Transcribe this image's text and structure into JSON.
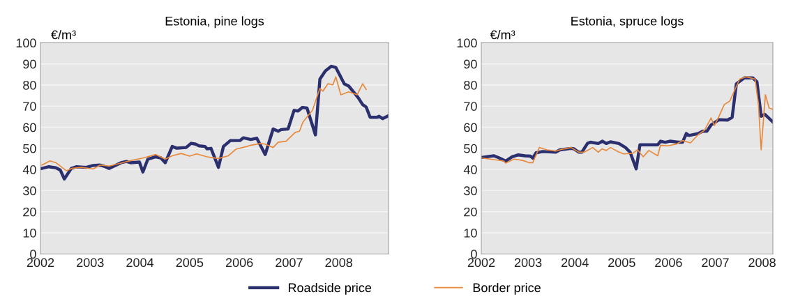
{
  "chart_data": [
    {
      "type": "line",
      "title": "Estonia, pine logs",
      "ylabel": "€/m³",
      "ylim": [
        0,
        100
      ],
      "yticks": [
        0,
        10,
        20,
        30,
        40,
        50,
        60,
        70,
        80,
        90,
        100
      ],
      "xlim": [
        2002,
        2009
      ],
      "xticks": [
        2002,
        2003,
        2004,
        2005,
        2006,
        2007,
        2008
      ],
      "grid": "y",
      "legend": "bottom",
      "marker": "none",
      "series": [
        {
          "name": "Roadside price",
          "color": "#2b2f6e",
          "line_style": "solid",
          "x": [
            2002.03,
            2002.17,
            2002.31,
            2002.4,
            2002.48,
            2002.62,
            2002.73,
            2002.92,
            2003.06,
            2003.2,
            2003.27,
            2003.38,
            2003.48,
            2003.62,
            2003.73,
            2003.81,
            2003.99,
            2004.06,
            2004.16,
            2004.32,
            2004.42,
            2004.51,
            2004.65,
            2004.74,
            2004.93,
            2005.03,
            2005.12,
            2005.19,
            2005.31,
            2005.35,
            2005.43,
            2005.58,
            2005.68,
            2005.82,
            2006.01,
            2006.08,
            2006.23,
            2006.35,
            2006.52,
            2006.68,
            2006.78,
            2006.84,
            2006.98,
            2007.1,
            2007.18,
            2007.27,
            2007.36,
            2007.53,
            2007.62,
            2007.73,
            2007.85,
            2007.94,
            2008.11,
            2008.2,
            2008.39,
            2008.48,
            2008.55,
            2008.63,
            2008.77,
            2008.81,
            2008.88,
            2009
          ],
          "values": [
            40.5,
            41.3,
            40.8,
            39.7,
            35.5,
            40.5,
            41.3,
            41,
            41.9,
            42.1,
            41.6,
            40.5,
            41.6,
            43.2,
            43.8,
            43.2,
            43.5,
            38.8,
            44.9,
            46,
            45.5,
            43.2,
            50.9,
            50.1,
            50.4,
            52.4,
            52,
            51.2,
            50.9,
            49.8,
            50,
            41,
            50.9,
            53.7,
            53.7,
            55,
            54.2,
            54.8,
            47.1,
            59.2,
            58.1,
            58.9,
            59.2,
            68,
            67.7,
            69.4,
            69.1,
            56.4,
            82.8,
            86.7,
            88.9,
            88.3,
            80.6,
            79.5,
            74,
            70.7,
            69.6,
            64.7,
            64.7,
            65.2,
            64.1,
            65.5
          ]
        },
        {
          "name": "Border price",
          "color": "#e8883a",
          "line_style": "solid",
          "x": [
            2002.03,
            2002.19,
            2002.31,
            2002.52,
            2002.63,
            2002.83,
            2003.06,
            2003.2,
            2003.38,
            2003.62,
            2003.83,
            2004.06,
            2004.32,
            2004.51,
            2004.65,
            2004.83,
            2005.0,
            2005.14,
            2005.35,
            2005.58,
            2005.78,
            2005.93,
            2006.15,
            2006.23,
            2006.43,
            2006.52,
            2006.68,
            2006.78,
            2006.94,
            2007.12,
            2007.21,
            2007.28,
            2007.47,
            2007.62,
            2007.68,
            2007.78,
            2007.88,
            2007.94,
            2008.04,
            2008.2,
            2008.37,
            2008.48,
            2008.55
          ],
          "values": [
            42.1,
            44.1,
            43.2,
            39.4,
            40.5,
            41,
            40.2,
            42.1,
            41.6,
            43,
            44.3,
            45.4,
            47.1,
            44.9,
            46.5,
            47.6,
            46.3,
            47.4,
            46,
            45.2,
            46.5,
            49.6,
            50.9,
            51.5,
            52.3,
            52,
            50.4,
            52.9,
            53.4,
            57.5,
            58.1,
            62.5,
            68,
            78.4,
            77.1,
            80.6,
            80.1,
            83.9,
            75.4,
            76.8,
            75.4,
            80.6,
            77.9
          ]
        }
      ]
    },
    {
      "type": "line",
      "title": "Estonia, spruce logs",
      "ylabel": "€/m³",
      "ylim": [
        0,
        100
      ],
      "yticks": [
        0,
        10,
        20,
        30,
        40,
        50,
        60,
        70,
        80,
        90,
        100
      ],
      "xlim": [
        2002,
        2008.23
      ],
      "xticks": [
        2002,
        2003,
        2004,
        2005,
        2006,
        2007,
        2008
      ],
      "grid": "y",
      "marker": "none",
      "series": [
        {
          "name": "Roadside price",
          "color": "#2b2f6e",
          "line_style": "solid",
          "x": [
            2002.0,
            2002.27,
            2002.38,
            2002.52,
            2002.66,
            2002.7,
            2002.79,
            2002.93,
            2003.05,
            2003.1,
            2003.17,
            2003.31,
            2003.59,
            2003.68,
            2003.92,
            2003.98,
            2004.08,
            2004.15,
            2004.27,
            2004.33,
            2004.5,
            2004.59,
            2004.67,
            2004.76,
            2004.94,
            2005.08,
            2005.18,
            2005.31,
            2005.39,
            2005.77,
            2005.83,
            2005.93,
            2006.03,
            2006.21,
            2006.3,
            2006.38,
            2006.44,
            2006.63,
            2006.73,
            2006.82,
            2006.91,
            2007.08,
            2007.26,
            2007.36,
            2007.45,
            2007.62,
            2007.8,
            2007.89,
            2007.98,
            2008.06,
            2008.23
          ],
          "values": [
            45.7,
            46.5,
            45.5,
            44,
            46,
            46.3,
            46.9,
            46.5,
            46.3,
            45.4,
            47.9,
            48.5,
            48.2,
            49.3,
            50,
            49.8,
            48.2,
            48.2,
            52.4,
            52.9,
            52.3,
            53.4,
            52.3,
            53.1,
            52.3,
            50.4,
            48.2,
            40.3,
            51.7,
            51.7,
            53.4,
            52.9,
            53.4,
            52.9,
            52.9,
            57,
            56.1,
            57,
            58.1,
            58.1,
            61.1,
            63.6,
            63.4,
            64.7,
            80.6,
            83.4,
            83.4,
            81.5,
            65.2,
            66.1,
            62.5
          ]
        },
        {
          "name": "Border price",
          "color": "#e8883a",
          "line_style": "solid",
          "x": [
            2002.0,
            2002.48,
            2002.52,
            2002.7,
            2002.88,
            2003.03,
            2003.1,
            2003.24,
            2003.4,
            2003.59,
            2003.73,
            2003.92,
            2004.08,
            2004.2,
            2004.38,
            2004.5,
            2004.58,
            2004.67,
            2004.76,
            2004.94,
            2005.04,
            2005.23,
            2005.34,
            2005.46,
            2005.58,
            2005.77,
            2005.83,
            2005.98,
            2006.17,
            2006.3,
            2006.47,
            2006.63,
            2006.77,
            2006.91,
            2006.98,
            2007.08,
            2007.19,
            2007.31,
            2007.52,
            2007.66,
            2007.85,
            2007.92,
            2007.98,
            2008.07,
            2008.15,
            2008.23
          ],
          "values": [
            45.5,
            44,
            43,
            44.9,
            44.3,
            43.2,
            43.2,
            50.4,
            49.3,
            48.7,
            49.6,
            50.4,
            48.2,
            48.2,
            50.4,
            48.2,
            49.8,
            49,
            50.4,
            48.2,
            47.4,
            47.6,
            49.3,
            46,
            49,
            46.5,
            51.5,
            51.2,
            52,
            53.7,
            52.6,
            56.4,
            58.6,
            64.4,
            60.8,
            65.2,
            70.7,
            72.4,
            82.8,
            83.9,
            82.8,
            71.3,
            49.3,
            75.4,
            69.1,
            68.5
          ]
        }
      ]
    }
  ]
}
